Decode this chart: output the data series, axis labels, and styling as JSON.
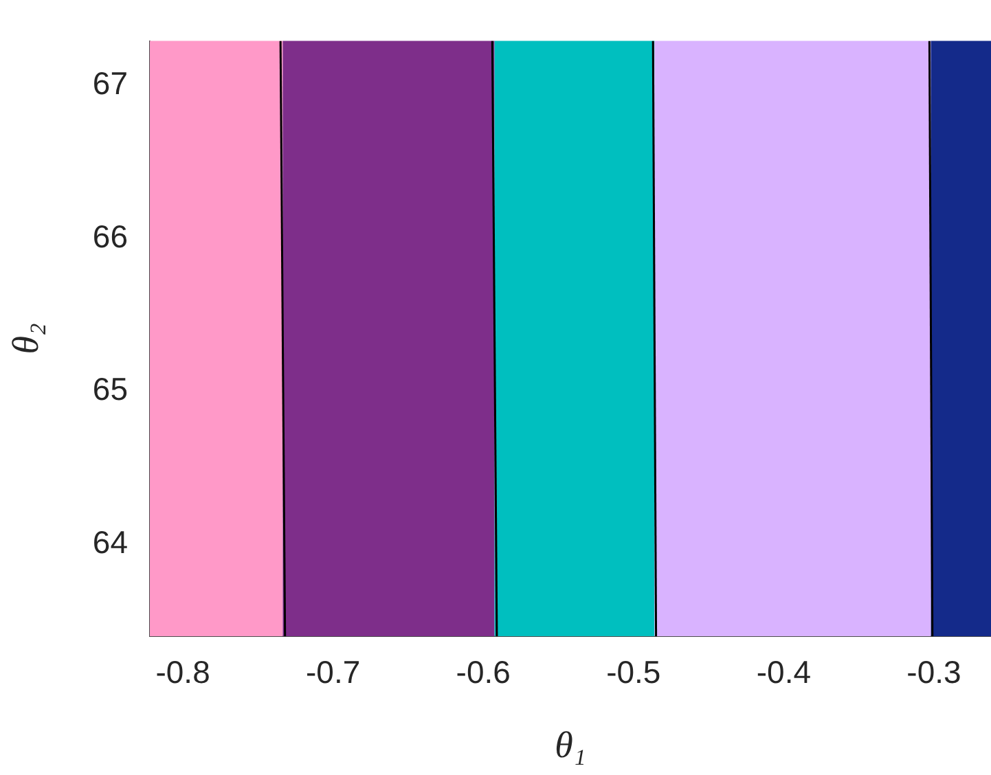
{
  "chart_data": {
    "type": "line",
    "xlabel": "θ₁",
    "ylabel": "θ₂",
    "xlim": [
      -0.822,
      -0.262
    ],
    "ylim": [
      63.4,
      67.29
    ],
    "xticks": [
      -0.8,
      -0.7,
      -0.6,
      -0.5,
      -0.4,
      -0.3
    ],
    "yticks": [
      64,
      65,
      66,
      67
    ],
    "marker": "none",
    "bands": [
      {
        "axis": "x",
        "from": -0.822,
        "to": -0.7335,
        "color": "#ff99c8"
      },
      {
        "axis": "x",
        "from": -0.7335,
        "to": -0.5925,
        "color": "#7e2e8a"
      },
      {
        "axis": "x",
        "from": -0.5925,
        "to": -0.486,
        "color": "#00bfbf"
      },
      {
        "axis": "x",
        "from": -0.486,
        "to": -0.302,
        "color": "#d9b3ff"
      },
      {
        "axis": "x",
        "from": -0.302,
        "to": -0.262,
        "color": "#142a8a"
      }
    ],
    "series": [
      {
        "color": "#000000",
        "x": [
          -0.735,
          -0.732
        ],
        "values": [
          67.29,
          63.4
        ]
      },
      {
        "color": "#000000",
        "x": [
          -0.594,
          -0.591
        ],
        "values": [
          67.29,
          63.4
        ]
      },
      {
        "color": "#000000",
        "x": [
          -0.487,
          -0.485
        ],
        "values": [
          67.29,
          63.4
        ]
      },
      {
        "color": "#000000",
        "x": [
          -0.303,
          -0.301
        ],
        "values": [
          67.29,
          63.4
        ]
      }
    ]
  }
}
